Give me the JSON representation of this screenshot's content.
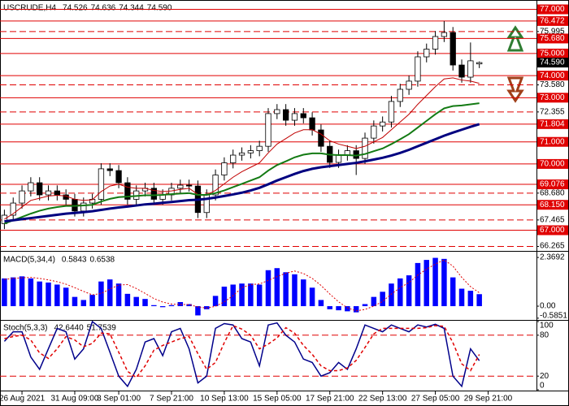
{
  "chart_data": [
    {
      "type": "candlestick",
      "title": "USCRUDE,H4",
      "readout": [
        {
          "value": 74.526,
          "label": "74.526"
        },
        {
          "value": 74.636,
          "label": "74.636"
        },
        {
          "value": 74.344,
          "label": "74.344"
        },
        {
          "value": 74.59,
          "label": "74.590"
        }
      ],
      "open": [
        67.3,
        67.68,
        68.23,
        68.78,
        69.15,
        68.6,
        68.78,
        68.6,
        68.4,
        67.87,
        68.23,
        68.4,
        69.78,
        69.7,
        69.15,
        68.4,
        68.78,
        68.9,
        68.4,
        68.6,
        68.9,
        69.04,
        69.0,
        67.8,
        68.6,
        69.5,
        70.05,
        70.4,
        70.5,
        70.6,
        70.8,
        72.28,
        72.46,
        71.98,
        72.28,
        72.09,
        71.54,
        70.8,
        70.07,
        70.4,
        70.6,
        70.25,
        71.17,
        71.72,
        71.9,
        72.83,
        73.38,
        73.75,
        74.85,
        75.2,
        75.77,
        75.95,
        74.48,
        73.93,
        74.53
      ],
      "high": [
        67.93,
        68.48,
        69.03,
        69.4,
        69.4,
        69.03,
        69.03,
        68.85,
        68.65,
        68.48,
        68.65,
        70.03,
        70.03,
        69.95,
        69.4,
        69.03,
        69.15,
        69.15,
        68.85,
        69.15,
        69.29,
        69.29,
        69.25,
        68.85,
        69.75,
        70.3,
        70.65,
        70.75,
        70.85,
        71.05,
        72.53,
        72.71,
        72.71,
        72.53,
        72.53,
        72.34,
        71.79,
        71.05,
        70.65,
        70.85,
        70.85,
        71.42,
        71.97,
        72.15,
        73.08,
        73.63,
        74.0,
        75.1,
        75.45,
        76.02,
        76.47,
        76.2,
        74.73,
        75.5,
        74.64
      ],
      "low": [
        67.05,
        67.43,
        67.98,
        68.53,
        68.35,
        68.35,
        68.35,
        68.15,
        67.62,
        67.62,
        67.98,
        68.15,
        69.45,
        68.9,
        68.15,
        68.15,
        68.53,
        68.15,
        68.15,
        68.35,
        68.65,
        68.75,
        67.55,
        67.55,
        68.35,
        69.25,
        69.8,
        70.15,
        70.25,
        70.35,
        70.55,
        72.03,
        71.73,
        71.73,
        71.84,
        71.29,
        70.55,
        69.82,
        69.82,
        70.15,
        69.5,
        70.0,
        70.92,
        71.47,
        71.65,
        72.58,
        73.13,
        73.5,
        74.6,
        74.95,
        75.52,
        74.23,
        73.68,
        73.68,
        74.34
      ],
      "close": [
        67.68,
        68.23,
        68.78,
        69.15,
        68.6,
        68.78,
        68.6,
        68.4,
        67.87,
        68.23,
        68.4,
        69.78,
        69.7,
        69.15,
        68.4,
        68.78,
        68.9,
        68.4,
        68.6,
        68.9,
        69.04,
        69.0,
        67.8,
        68.6,
        69.5,
        70.05,
        70.4,
        70.5,
        70.6,
        70.8,
        72.28,
        72.46,
        71.98,
        72.28,
        72.09,
        71.54,
        70.8,
        70.07,
        70.4,
        70.6,
        70.25,
        71.17,
        71.72,
        71.9,
        72.83,
        73.38,
        73.75,
        74.85,
        75.2,
        75.77,
        75.95,
        74.48,
        73.93,
        74.67,
        74.59
      ],
      "up_color": "#ffffff",
      "down_color": "#000000",
      "level_color": "#e00000",
      "series": [
        {
          "color": "#c00000",
          "width": 1,
          "values": [
            67.5,
            67.75,
            68.05,
            68.35,
            68.45,
            68.55,
            68.58,
            68.55,
            68.4,
            68.35,
            68.38,
            68.75,
            69.0,
            69.08,
            68.95,
            68.9,
            68.9,
            68.8,
            68.75,
            68.78,
            68.85,
            68.9,
            68.62,
            68.6,
            68.8,
            69.1,
            69.4,
            69.65,
            69.85,
            70.05,
            70.5,
            70.9,
            71.15,
            71.4,
            71.55,
            71.55,
            71.35,
            71.05,
            70.9,
            70.8,
            70.7,
            70.8,
            71.0,
            71.2,
            71.55,
            71.9,
            72.25,
            72.7,
            73.1,
            73.5,
            73.85,
            73.9,
            73.8,
            73.75,
            73.65
          ]
        },
        {
          "color": "#137a13",
          "width": 2,
          "values": [
            67.3,
            67.45,
            67.6,
            67.75,
            67.88,
            67.98,
            68.05,
            68.1,
            68.1,
            68.12,
            68.15,
            68.3,
            68.42,
            68.5,
            68.52,
            68.55,
            68.58,
            68.58,
            68.6,
            68.63,
            68.66,
            68.68,
            68.6,
            68.6,
            68.68,
            68.8,
            68.95,
            69.1,
            69.25,
            69.4,
            69.7,
            69.95,
            70.12,
            70.3,
            70.42,
            70.48,
            70.48,
            70.42,
            70.4,
            70.4,
            70.38,
            70.45,
            70.58,
            70.7,
            70.9,
            71.12,
            71.35,
            71.65,
            71.95,
            72.25,
            72.52,
            72.62,
            72.65,
            72.7,
            72.75
          ]
        },
        {
          "color": "#000080",
          "width": 3,
          "values": [
            67.4,
            67.45,
            67.5,
            67.55,
            67.6,
            67.65,
            67.7,
            67.75,
            67.78,
            67.82,
            67.86,
            67.92,
            67.98,
            68.03,
            68.07,
            68.12,
            68.17,
            68.2,
            68.24,
            68.28,
            68.32,
            68.36,
            68.38,
            68.42,
            68.48,
            68.55,
            68.62,
            68.7,
            68.8,
            68.92,
            69.08,
            69.25,
            69.4,
            69.55,
            69.68,
            69.78,
            69.85,
            69.9,
            69.95,
            70.0,
            70.05,
            70.12,
            70.2,
            70.28,
            70.38,
            70.5,
            70.64,
            70.8,
            70.96,
            71.12,
            71.28,
            71.42,
            71.55,
            71.68,
            71.8
          ]
        }
      ],
      "xlim": [
        0,
        61
      ],
      "xticks": [
        {
          "value": 2,
          "label": "26 Aug 2021"
        },
        {
          "value": 8,
          "label": "31 Aug 09:00"
        },
        {
          "value": 13,
          "label": "3 Sep 01:00"
        },
        {
          "value": 19,
          "label": "7 Sep 21:00"
        },
        {
          "value": 25,
          "label": "10 Sep 13:00"
        },
        {
          "value": 31,
          "label": "15 Sep 05:00"
        },
        {
          "value": 37,
          "label": "17 Sep 21:00"
        },
        {
          "value": 43,
          "label": "22 Sep 13:00"
        },
        {
          "value": 49,
          "label": "27 Sep 05:00"
        },
        {
          "value": 55,
          "label": "29 Sep 21:00"
        }
      ],
      "ylim": [
        66.1,
        77.35
      ],
      "yticks": [
        {
          "value": 75.995,
          "label": "75.995"
        },
        {
          "value": 73.58,
          "label": "73.580"
        },
        {
          "value": 72.355,
          "label": "72.355"
        },
        {
          "value": 68.68,
          "label": "68.680"
        },
        {
          "value": 67.465,
          "label": "67.465"
        },
        {
          "value": 66.265,
          "label": "66.265"
        }
      ],
      "levels": [
        {
          "value": 77,
          "label": "77.000"
        },
        {
          "value": 76.472,
          "label": "76.472"
        },
        {
          "value": 75.68,
          "label": "75.680"
        },
        {
          "value": 75,
          "label": "75.000"
        },
        {
          "value": 74,
          "label": "74.000"
        },
        {
          "value": 73,
          "label": "73.000"
        },
        {
          "value": 71.804,
          "label": "71.804"
        },
        {
          "value": 71,
          "label": "71.000"
        },
        {
          "value": 70,
          "label": "70.000"
        },
        {
          "value": 69.076,
          "label": "69.076"
        },
        {
          "value": 68.15,
          "label": "68.150"
        },
        {
          "value": 67,
          "label": "67.000"
        }
      ]
    },
    {
      "type": "histogram",
      "title": "MACD(5,34,4)",
      "readout": [
        0.5843,
        0.6538
      ],
      "xlim": [
        0,
        61
      ],
      "ylim": [
        -0.67,
        2.57
      ],
      "yticks": [
        2.3692,
        {
          "value": 0,
          "label": "0.00"
        },
        -0.5851
      ],
      "series": [
        {
          "color": "#0000ff",
          "style": "bar",
          "values": [
            1.35,
            1.4,
            1.45,
            1.35,
            1.2,
            1.15,
            1.05,
            0.9,
            0.45,
            0.3,
            0.55,
            1.2,
            1.3,
            1.1,
            0.6,
            0.45,
            0.35,
            0.05,
            -0.05,
            0.05,
            0.2,
            0.1,
            -0.45,
            -0.15,
            0.5,
            0.95,
            1.05,
            1.1,
            1.1,
            1.05,
            1.75,
            1.85,
            1.65,
            1.55,
            1.3,
            0.9,
            0.3,
            -0.15,
            -0.2,
            -0.25,
            -0.3,
            0.1,
            0.45,
            0.7,
            1.1,
            1.35,
            1.5,
            2.1,
            2.25,
            2.35,
            2.3,
            1.4,
            0.85,
            0.75,
            0.5843
          ]
        },
        {
          "color": "#e00000",
          "style": "dotted",
          "values": [
            1.3,
            1.35,
            1.38,
            1.4,
            1.35,
            1.28,
            1.19,
            1.07,
            0.9,
            0.72,
            0.55,
            0.62,
            0.83,
            1.03,
            1.05,
            0.86,
            0.62,
            0.37,
            0.2,
            0.1,
            0.08,
            0.08,
            -0.04,
            -0.09,
            -0.01,
            0.21,
            0.51,
            0.9,
            1.05,
            1.08,
            1.25,
            1.44,
            1.6,
            1.71,
            1.59,
            1.35,
            1.01,
            0.59,
            0.21,
            -0.08,
            -0.23,
            -0.16,
            0.0,
            0.23,
            0.59,
            0.9,
            1.15,
            1.51,
            1.8,
            2.05,
            2.25,
            1.95,
            1.4,
            0.95,
            0.6538
          ]
        }
      ]
    },
    {
      "type": "line",
      "title": "Stoch(5,3,3)",
      "readout": [
        {
          "value": 42.644,
          "label": "42.6440"
        },
        51.7539
      ],
      "xlim": [
        0,
        61
      ],
      "ylim": [
        0,
        100
      ],
      "yticks": [
        100,
        80,
        20,
        0
      ],
      "level_color": "#e00000",
      "series": [
        {
          "color": "#00008b",
          "style": "solid",
          "values": [
            71,
            85,
            85,
            48,
            30,
            60,
            90,
            85,
            45,
            60,
            100,
            90,
            55,
            20,
            5,
            30,
            70,
            75,
            50,
            85,
            90,
            60,
            10,
            20,
            90,
            97,
            95,
            75,
            70,
            35,
            95,
            98,
            80,
            70,
            45,
            40,
            20,
            25,
            40,
            30,
            60,
            95,
            90,
            85,
            95,
            90,
            85,
            95,
            92,
            96,
            90,
            20,
            5,
            60,
            42.644
          ]
        },
        {
          "color": "#e00000",
          "style": "dashed",
          "values": [
            75,
            78,
            80,
            73,
            54,
            46,
            60,
            78,
            73,
            63,
            68,
            83,
            82,
            55,
            27,
            18,
            35,
            58,
            65,
            70,
            75,
            78,
            53,
            30,
            40,
            69,
            94,
            89,
            80,
            60,
            67,
            76,
            91,
            83,
            65,
            52,
            35,
            28,
            28,
            32,
            43,
            62,
            82,
            90,
            90,
            90,
            90,
            90,
            91,
            94,
            93,
            69,
            38,
            28,
            51.7539
          ]
        }
      ]
    }
  ]
}
